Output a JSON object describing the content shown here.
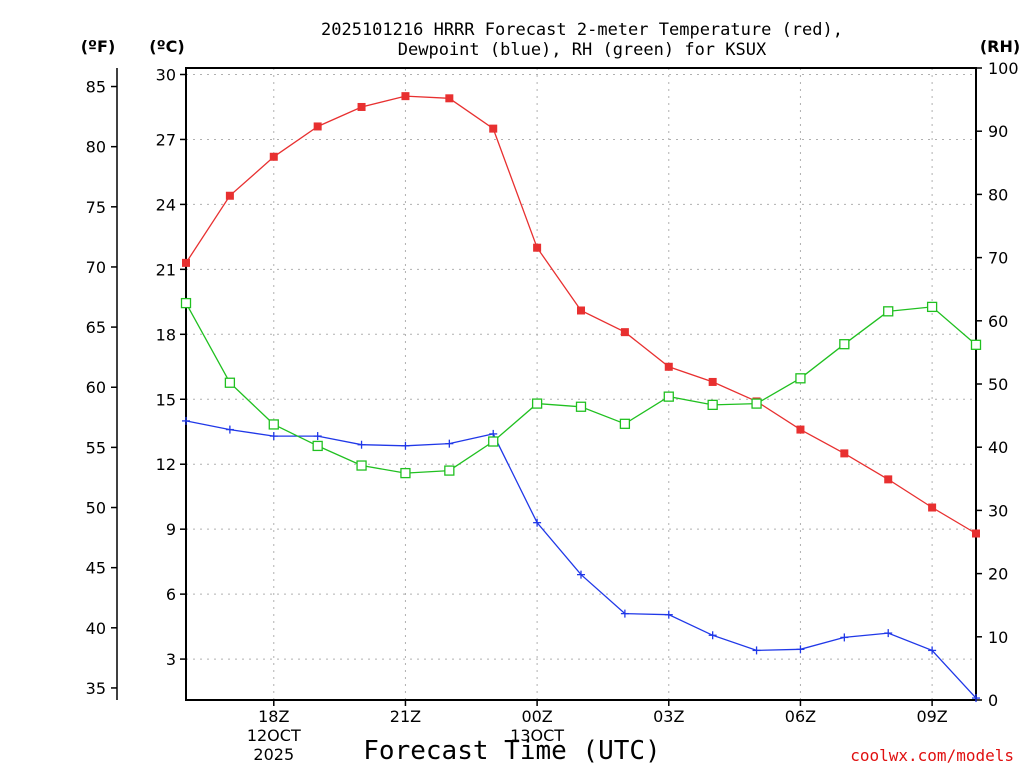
{
  "chart_data": {
    "type": "line",
    "title_line1": "2025101216 HRRR Forecast 2-meter Temperature (red),",
    "title_line2": "Dewpoint (blue), RH (green) for KSUX",
    "xlabel": "Forecast Time (UTC)",
    "credit": "coolwx.com/models",
    "units": {
      "fahrenheit": "(ºF)",
      "celsius": "(ºC)",
      "rh": "(RH)"
    },
    "x_range": [
      16,
      34
    ],
    "x_ticks": [
      {
        "x": 18,
        "label": "18Z",
        "sub1": "12OCT",
        "sub2": "2025"
      },
      {
        "x": 21,
        "label": "21Z",
        "sub1": "",
        "sub2": ""
      },
      {
        "x": 24,
        "label": "00Z",
        "sub1": "13OCT",
        "sub2": ""
      },
      {
        "x": 27,
        "label": "03Z",
        "sub1": "",
        "sub2": ""
      },
      {
        "x": 30,
        "label": "06Z",
        "sub1": "",
        "sub2": ""
      },
      {
        "x": 33,
        "label": "09Z",
        "sub1": "",
        "sub2": ""
      }
    ],
    "ylim_c": [
      1.11,
      30.3
    ],
    "y_ticks_c": [
      "3",
      "6",
      "9",
      "12",
      "15",
      "18",
      "21",
      "24",
      "27",
      "30"
    ],
    "y_ticks_f": [
      "35",
      "40",
      "45",
      "50",
      "55",
      "60",
      "65",
      "70",
      "75",
      "80",
      "85"
    ],
    "ylim_rh": [
      0,
      100
    ],
    "y_ticks_rh": [
      "0",
      "10",
      "20",
      "30",
      "40",
      "50",
      "60",
      "70",
      "80",
      "90",
      "100"
    ],
    "series": [
      {
        "name": "Temperature",
        "unit": "C",
        "color": "#e83030",
        "marker": "filled-square",
        "x": [
          16,
          17,
          18,
          19,
          20,
          21,
          22,
          23,
          24,
          25,
          26,
          27,
          28,
          29,
          30,
          31,
          32,
          33,
          34
        ],
        "values": [
          21.3,
          24.4,
          26.2,
          27.6,
          28.5,
          29.0,
          28.9,
          27.5,
          22.0,
          19.1,
          18.1,
          16.5,
          15.8,
          14.9,
          13.6,
          12.5,
          11.3,
          10.0,
          8.8
        ]
      },
      {
        "name": "Dewpoint",
        "unit": "C",
        "color": "#2038e8",
        "marker": "plus",
        "x": [
          16,
          17,
          18,
          19,
          20,
          21,
          22,
          23,
          24,
          25,
          26,
          27,
          28,
          29,
          30,
          31,
          32,
          33,
          34
        ],
        "values": [
          14.0,
          13.6,
          13.3,
          13.3,
          12.9,
          12.85,
          12.95,
          13.4,
          9.3,
          6.9,
          5.1,
          5.05,
          4.1,
          3.4,
          3.45,
          4.0,
          4.2,
          3.4,
          1.2
        ]
      },
      {
        "name": "RH",
        "unit": "%",
        "color": "#20c020",
        "marker": "open-square",
        "x": [
          16,
          17,
          18,
          19,
          20,
          21,
          22,
          23,
          24,
          25,
          26,
          27,
          28,
          29,
          30,
          31,
          32,
          33,
          34
        ],
        "values": [
          62.8,
          50.2,
          43.6,
          40.2,
          37.1,
          35.9,
          36.3,
          40.9,
          46.9,
          46.4,
          43.7,
          48.0,
          46.7,
          46.9,
          50.9,
          56.3,
          61.5,
          62.2,
          56.2
        ]
      }
    ]
  }
}
